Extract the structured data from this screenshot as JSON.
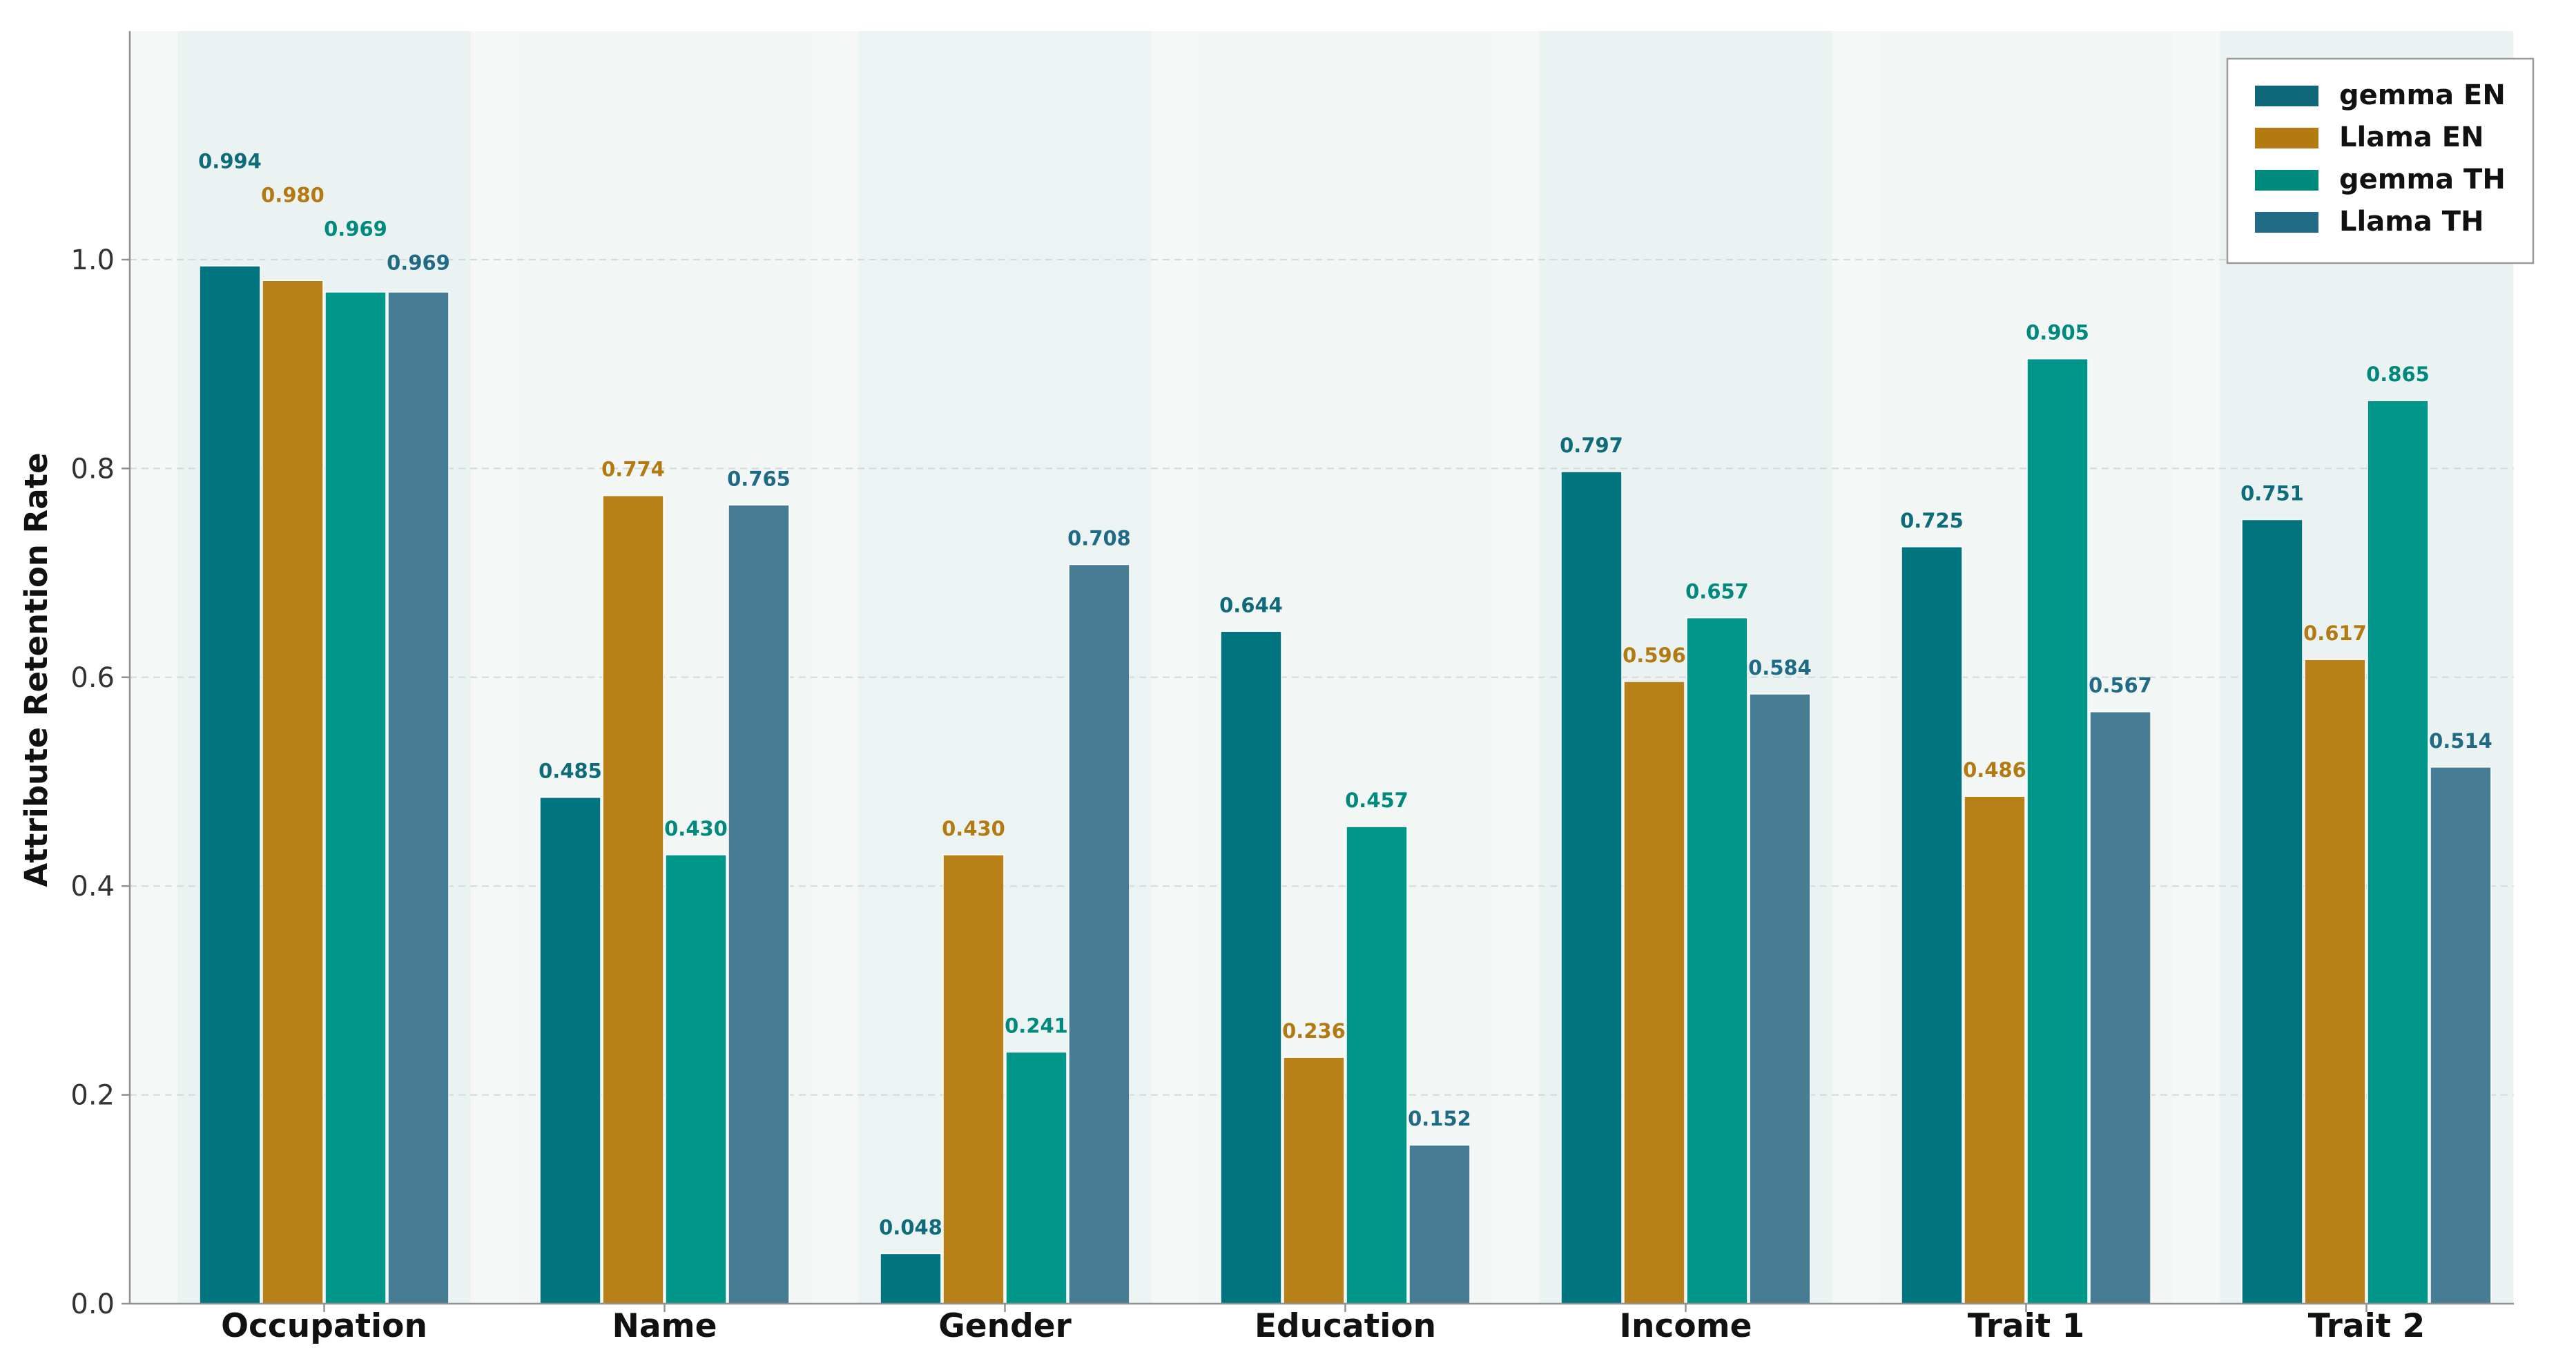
{
  "chart_data": {
    "type": "bar",
    "title": "",
    "xlabel": "",
    "ylabel": "Attribute Retention Rate",
    "ylim": [
      0,
      1.22
    ],
    "yticks": [
      "0.0",
      "0.2",
      "0.4",
      "0.6",
      "0.8",
      "1.0"
    ],
    "grid": true,
    "legend_position": "top-right",
    "categories": [
      "Occupation",
      "Name",
      "Gender",
      "Education",
      "Income",
      "Trait 1",
      "Trait 2"
    ],
    "series": [
      {
        "name": "gemma EN",
        "color": "#00757f",
        "label_color": "#0d6b7a",
        "values": [
          0.994,
          0.485,
          0.048,
          0.644,
          0.797,
          0.725,
          0.751
        ],
        "labels": [
          "0.994",
          "0.485",
          "0.048",
          "0.644",
          "0.797",
          "0.725",
          "0.751"
        ]
      },
      {
        "name": "Llama EN",
        "color": "#b88018",
        "label_color": "#b47a12",
        "values": [
          0.98,
          0.774,
          0.43,
          0.236,
          0.596,
          0.486,
          0.617
        ],
        "labels": [
          "0.980",
          "0.774",
          "0.430",
          "0.236",
          "0.596",
          "0.486",
          "0.617"
        ]
      },
      {
        "name": "gemma TH",
        "color": "#00968a",
        "label_color": "#00897d",
        "values": [
          0.969,
          0.43,
          0.241,
          0.457,
          0.657,
          0.905,
          0.865
        ],
        "labels": [
          "0.969",
          "0.430",
          "0.241",
          "0.457",
          "0.657",
          "0.905",
          "0.865"
        ]
      },
      {
        "name": "Llama TH",
        "color": "#477d94",
        "label_color": "#1f6b86",
        "values": [
          0.969,
          0.765,
          0.708,
          0.152,
          0.584,
          0.567,
          0.514
        ],
        "labels": [
          "0.969",
          "0.765",
          "0.708",
          "0.152",
          "0.584",
          "0.567",
          "0.514"
        ]
      }
    ],
    "legend_swatch_colors": [
      "#0e6879",
      "#b47a12",
      "#00897d",
      "#216b86"
    ]
  }
}
